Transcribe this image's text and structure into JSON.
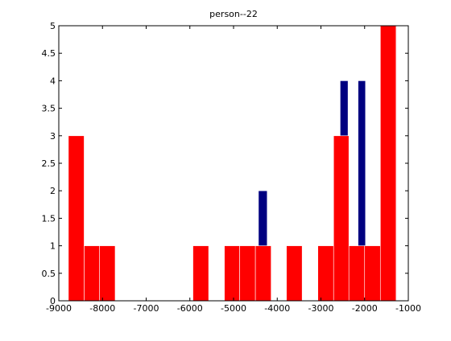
{
  "chart_data": {
    "type": "bar",
    "title": "person--22",
    "xlabel": "",
    "ylabel": "",
    "xlim": [
      -9000,
      -1000
    ],
    "ylim": [
      0,
      5
    ],
    "xticks": [
      -9000,
      -8000,
      -7000,
      -6000,
      -5000,
      -4000,
      -3000,
      -2000,
      -1000
    ],
    "xtick_labels": [
      "-9000",
      "-8000",
      "-7000",
      "-6000",
      "-5000",
      "-4000",
      "-3000",
      "-2000",
      "-1000"
    ],
    "yticks": [
      0,
      0.5,
      1,
      1.5,
      2,
      2.5,
      3,
      3.5,
      4,
      4.5,
      5
    ],
    "ytick_labels": [
      "0",
      "0.5",
      "1",
      "1.5",
      "2",
      "2.5",
      "3",
      "3.5",
      "4",
      "4.5",
      "5"
    ],
    "grid": false,
    "series": [
      {
        "color": "#000080",
        "bars": [
          {
            "x0": -4430,
            "x1": -4230,
            "value": 2
          },
          {
            "x0": -2560,
            "x1": -2380,
            "value": 4
          },
          {
            "x0": -2150,
            "x1": -1980,
            "value": 4
          },
          {
            "x0": -1430,
            "x1": -1270,
            "value": 5
          }
        ]
      },
      {
        "color": "#ff0000",
        "bars": [
          {
            "x0": -8780,
            "x1": -8420,
            "value": 3
          },
          {
            "x0": -8420,
            "x1": -8070,
            "value": 1
          },
          {
            "x0": -8070,
            "x1": -7710,
            "value": 1
          },
          {
            "x0": -5930,
            "x1": -5570,
            "value": 1
          },
          {
            "x0": -5210,
            "x1": -4860,
            "value": 1
          },
          {
            "x0": -4860,
            "x1": -4500,
            "value": 1
          },
          {
            "x0": -4500,
            "x1": -4140,
            "value": 1
          },
          {
            "x0": -3790,
            "x1": -3430,
            "value": 1
          },
          {
            "x0": -3070,
            "x1": -2710,
            "value": 1
          },
          {
            "x0": -2710,
            "x1": -2360,
            "value": 3
          },
          {
            "x0": -2360,
            "x1": -2000,
            "value": 1
          },
          {
            "x0": -2000,
            "x1": -1640,
            "value": 1
          },
          {
            "x0": -1640,
            "x1": -1280,
            "value": 5
          }
        ]
      }
    ]
  }
}
